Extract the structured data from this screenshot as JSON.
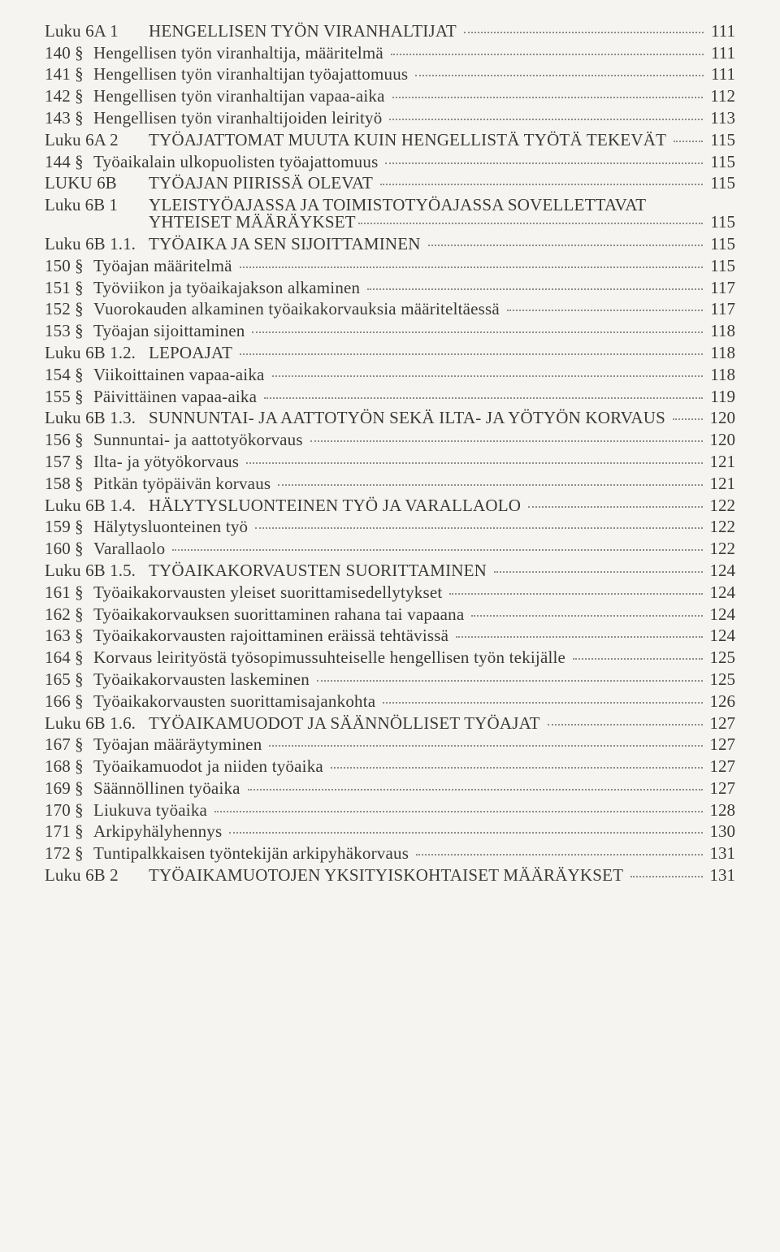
{
  "page": {
    "background_color": "#f5f4f0",
    "text_color": "#3a3a38",
    "dot_color": "#8e8d87",
    "font_family": "Georgia, Times New Roman, serif",
    "font_size_pt": 16
  },
  "toc": [
    {
      "prefix": "Luku 6A 1",
      "title": "HENGELLISEN TYÖN VIRANHALTIJAT",
      "page": "111",
      "level": 0,
      "prefix_wide": true
    },
    {
      "prefix": "140 §",
      "title": "Hengellisen työn viranhaltija, määritelmä",
      "page": "111",
      "level": 2
    },
    {
      "prefix": "141 §",
      "title": "Hengellisen työn viranhaltijan työajattomuus",
      "page": "111",
      "level": 2
    },
    {
      "prefix": "142 §",
      "title": "Hengellisen työn viranhaltijan vapaa-aika",
      "page": "112",
      "level": 2
    },
    {
      "prefix": "143 §",
      "title": "Hengellisen työn viranhaltijoiden leirityö",
      "page": "113",
      "level": 2
    },
    {
      "prefix": "Luku 6A 2",
      "title": "TYÖAJATTOMAT MUUTA KUIN HENGELLISTÄ TYÖTÄ TEKEVÄT",
      "page": "115",
      "level": 0,
      "prefix_wide": true
    },
    {
      "prefix": "144 §",
      "title": "Työaikalain ulkopuolisten työajattomuus",
      "page": "115",
      "level": 2
    },
    {
      "prefix": "LUKU 6B",
      "title": "TYÖAJAN PIIRISSÄ OLEVAT",
      "page": "115",
      "level": 0,
      "prefix_wide": true
    },
    {
      "wrap": true,
      "prefix": "Luku 6B 1",
      "title_line1": "YLEISTYÖAJASSA JA TOIMISTOTYÖAJASSA SOVELLETTAVAT",
      "title_line2": "YHTEISET MÄÄRÄYKSET",
      "page": "115",
      "level": 0
    },
    {
      "prefix": "Luku 6B 1.1.",
      "title": "TYÖAIKA JA SEN SIJOITTAMINEN",
      "page": "115",
      "level": 1,
      "prefix_wide": true
    },
    {
      "prefix": "150 §",
      "title": "Työajan määritelmä",
      "page": "115",
      "level": 2
    },
    {
      "prefix": "151 §",
      "title": "Työviikon ja työaikajakson alkaminen",
      "page": "117",
      "level": 2
    },
    {
      "prefix": "152 §",
      "title": "Vuorokauden alkaminen työaikakorvauksia määriteltäessä",
      "page": "117",
      "level": 2
    },
    {
      "prefix": "153 §",
      "title": "Työajan sijoittaminen",
      "page": "118",
      "level": 2
    },
    {
      "prefix": "Luku 6B 1.2.",
      "title": "LEPOAJAT",
      "page": "118",
      "level": 1,
      "prefix_wide": true
    },
    {
      "prefix": "154 §",
      "title": "Viikoittainen vapaa-aika",
      "page": "118",
      "level": 2
    },
    {
      "prefix": "155 §",
      "title": "Päivittäinen vapaa-aika",
      "page": "119",
      "level": 2
    },
    {
      "prefix": "Luku 6B 1.3.",
      "title": "SUNNUNTAI- JA AATTOTYÖN SEKÄ ILTA- JA YÖTYÖN KORVAUS",
      "page": "120",
      "level": 1,
      "prefix_wide": true
    },
    {
      "prefix": "156 §",
      "title": "Sunnuntai- ja aattotyökorvaus",
      "page": "120",
      "level": 2
    },
    {
      "prefix": "157 §",
      "title": "Ilta- ja yötyökorvaus",
      "page": "121",
      "level": 2
    },
    {
      "prefix": "158 §",
      "title": "Pitkän työpäivän korvaus",
      "page": "121",
      "level": 2
    },
    {
      "prefix": "Luku 6B 1.4.",
      "title": "HÄLYTYSLUONTEINEN TYÖ JA VARALLAOLO",
      "page": "122",
      "level": 1,
      "prefix_wide": true
    },
    {
      "prefix": "159 §",
      "title": "Hälytysluonteinen työ",
      "page": "122",
      "level": 2
    },
    {
      "prefix": "160 §",
      "title": "Varallaolo",
      "page": "122",
      "level": 2
    },
    {
      "prefix": "Luku 6B 1.5.",
      "title": "TYÖAIKAKORVAUSTEN SUORITTAMINEN",
      "page": "124",
      "level": 1,
      "prefix_wide": true
    },
    {
      "prefix": "161 §",
      "title": "Työaikakorvausten yleiset suorittamisedellytykset",
      "page": "124",
      "level": 2
    },
    {
      "prefix": "162 §",
      "title": "Työaikakorvauksen suorittaminen rahana tai vapaana",
      "page": "124",
      "level": 2
    },
    {
      "prefix": "163 §",
      "title": "Työaikakorvausten rajoittaminen eräissä tehtävissä",
      "page": "124",
      "level": 2
    },
    {
      "prefix": "164 §",
      "title": "Korvaus leirityöstä työsopimussuhteiselle hengellisen työn tekijälle",
      "page": "125",
      "level": 2
    },
    {
      "prefix": "165 §",
      "title": "Työaikakorvausten laskeminen",
      "page": "125",
      "level": 2
    },
    {
      "prefix": "166 §",
      "title": "Työaikakorvausten suorittamisajankohta",
      "page": "126",
      "level": 2
    },
    {
      "prefix": "Luku 6B 1.6.",
      "title": "TYÖAIKAMUODOT JA SÄÄNNÖLLISET TYÖAJAT",
      "page": "127",
      "level": 1,
      "prefix_wide": true
    },
    {
      "prefix": "167 §",
      "title": "Työajan määräytyminen",
      "page": "127",
      "level": 2
    },
    {
      "prefix": "168 §",
      "title": "Työaikamuodot ja niiden työaika",
      "page": "127",
      "level": 2
    },
    {
      "prefix": "169 §",
      "title": "Säännöllinen työaika",
      "page": "127",
      "level": 2
    },
    {
      "prefix": "170 §",
      "title": "Liukuva työaika",
      "page": "128",
      "level": 2
    },
    {
      "prefix": "171 §",
      "title": "Arkipyhälyhennys",
      "page": "130",
      "level": 2
    },
    {
      "prefix": "172 §",
      "title": "Tuntipalkkaisen työntekijän arkipyhäkorvaus",
      "page": "131",
      "level": 2
    },
    {
      "prefix": "Luku 6B 2",
      "title": "TYÖAIKAMUOTOJEN YKSITYISKOHTAISET MÄÄRÄYKSET",
      "page": "131",
      "level": 0,
      "prefix_wide": true
    }
  ]
}
